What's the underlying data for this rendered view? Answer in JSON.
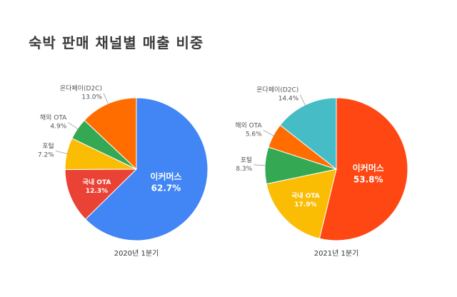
{
  "title": "숙박 판매 채널별 매출 비중",
  "chart_data": [
    {
      "type": "pie",
      "caption": "2020년 1분기",
      "slices": [
        {
          "label": "이커머스",
          "value": 62.7,
          "display": "62.7%",
          "color": "#4285F4"
        },
        {
          "label": "국내 OTA",
          "value": 12.3,
          "display": "12.3%",
          "color": "#EA4335"
        },
        {
          "label": "포털",
          "value": 7.2,
          "display": "7.2%",
          "color": "#FBBC04"
        },
        {
          "label": "해외 OTA",
          "value": 4.9,
          "display": "4.9%",
          "color": "#34A853"
        },
        {
          "label": "온다페이(D2C)",
          "value": 13.0,
          "display": "13.0%",
          "color": "#FF6D01"
        }
      ]
    },
    {
      "type": "pie",
      "caption": "2021년 1분기",
      "slices": [
        {
          "label": "이커머스",
          "value": 53.8,
          "display": "53.8%",
          "color": "#FF4713"
        },
        {
          "label": "국내 OTA",
          "value": 17.9,
          "display": "17.9%",
          "color": "#FBBC04"
        },
        {
          "label": "포털",
          "value": 8.3,
          "display": "8.3%",
          "color": "#34A853"
        },
        {
          "label": "해외 OTA",
          "value": 5.6,
          "display": "5.6%",
          "color": "#FF6D01"
        },
        {
          "label": "온다페이(D2C)",
          "value": 14.4,
          "display": "14.4%",
          "color": "#46BDC6"
        }
      ]
    }
  ]
}
